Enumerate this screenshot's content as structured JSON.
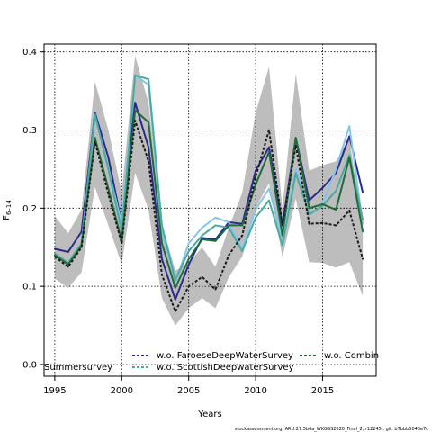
{
  "chart_data": {
    "type": "line",
    "xlabel": "Years",
    "ylabel": "F",
    "ylabel_sub": "6–14",
    "xlim": [
      1994.2,
      2019.0
    ],
    "ylim": [
      -0.015,
      0.41
    ],
    "xticks": [
      1995,
      2000,
      2005,
      2010,
      2015
    ],
    "yticks": [
      0.0,
      0.1,
      0.2,
      0.3,
      0.4
    ],
    "ytick_labels": [
      "0.0",
      "0.1",
      "0.2",
      "0.3",
      "0.4"
    ],
    "grid": true,
    "x": [
      1995,
      1996,
      1997,
      1998,
      1999,
      2000,
      2001,
      2002,
      2003,
      2004,
      2005,
      2006,
      2007,
      2008,
      2009,
      2010,
      2011,
      2012,
      2013,
      2014,
      2015,
      2016,
      2017,
      2018
    ],
    "band": {
      "color": "#bdbdbd",
      "upper": [
        0.19,
        0.168,
        0.198,
        0.362,
        0.3,
        0.22,
        0.395,
        0.335,
        0.18,
        0.12,
        0.13,
        0.15,
        0.125,
        0.175,
        0.22,
        0.322,
        0.381,
        0.2,
        0.372,
        0.248,
        0.255,
        0.26,
        0.29,
        0.17
      ],
      "lower": [
        0.11,
        0.098,
        0.118,
        0.227,
        0.178,
        0.128,
        0.245,
        0.198,
        0.085,
        0.05,
        0.072,
        0.085,
        0.072,
        0.112,
        0.138,
        0.2,
        0.232,
        0.137,
        0.212,
        0.131,
        0.13,
        0.124,
        0.131,
        0.088
      ]
    },
    "series": [
      {
        "color": "#2a2a8c",
        "dash": "",
        "width": 2,
        "values": [
          0.148,
          0.144,
          0.17,
          0.322,
          0.265,
          0.18,
          0.335,
          0.278,
          0.135,
          0.083,
          0.128,
          0.162,
          0.16,
          0.182,
          0.18,
          0.248,
          0.278,
          0.178,
          0.29,
          0.21,
          0.226,
          0.245,
          0.292,
          0.22
        ]
      },
      {
        "color": "#88c4e8",
        "dash": "",
        "width": 2,
        "values": [
          0.14,
          0.13,
          0.155,
          0.318,
          0.25,
          0.18,
          0.37,
          0.358,
          0.17,
          0.105,
          0.155,
          0.175,
          0.188,
          0.182,
          0.148,
          0.198,
          0.225,
          0.16,
          0.25,
          0.2,
          0.206,
          0.25,
          0.305,
          0.18
        ]
      },
      {
        "color": "#4aaaa0",
        "dash": "",
        "width": 2,
        "values": [
          0.142,
          0.13,
          0.155,
          0.32,
          0.25,
          0.17,
          0.37,
          0.365,
          0.178,
          0.108,
          0.145,
          0.165,
          0.178,
          0.175,
          0.145,
          0.188,
          0.21,
          0.152,
          0.245,
          0.192,
          0.203,
          0.222,
          0.268,
          0.185
        ]
      },
      {
        "color": "#1f6b38",
        "dash": "",
        "width": 2,
        "values": [
          0.14,
          0.128,
          0.152,
          0.29,
          0.225,
          0.158,
          0.325,
          0.31,
          0.155,
          0.098,
          0.135,
          0.16,
          0.158,
          0.178,
          0.178,
          0.23,
          0.272,
          0.165,
          0.29,
          0.2,
          0.205,
          0.198,
          0.265,
          0.17
        ]
      },
      {
        "color": "#1a1a1a",
        "dash": "3,2",
        "width": 2,
        "values": [
          0.138,
          0.125,
          0.15,
          0.285,
          0.218,
          0.155,
          0.312,
          0.26,
          0.115,
          0.068,
          0.1,
          0.112,
          0.096,
          0.14,
          0.165,
          0.24,
          0.3,
          0.178,
          0.28,
          0.18,
          0.181,
          0.178,
          0.197,
          0.135
        ]
      }
    ]
  },
  "legend": {
    "entries": [
      {
        "label": "Summersurvey",
        "color": "#1a1a1a",
        "dash": "",
        "show_line": false
      },
      {
        "label": "w.o. FaroeseDeepWaterSurvey",
        "color": "#2a2a8c",
        "dash": "3,2",
        "show_line": true
      },
      {
        "label": "w.o. ScottishDeepwaterSurvey",
        "color": "#4aaaa0",
        "dash": "3,2",
        "show_line": true
      },
      {
        "label": "w.o. Combin",
        "color": "#1f6b38",
        "dash": "3,2",
        "show_line": true
      }
    ]
  },
  "footer": "stockassessment.org, ARU.27.5b6a_WKGSS2020_Final_2, r12245 , git: b7bbb5048e7c"
}
